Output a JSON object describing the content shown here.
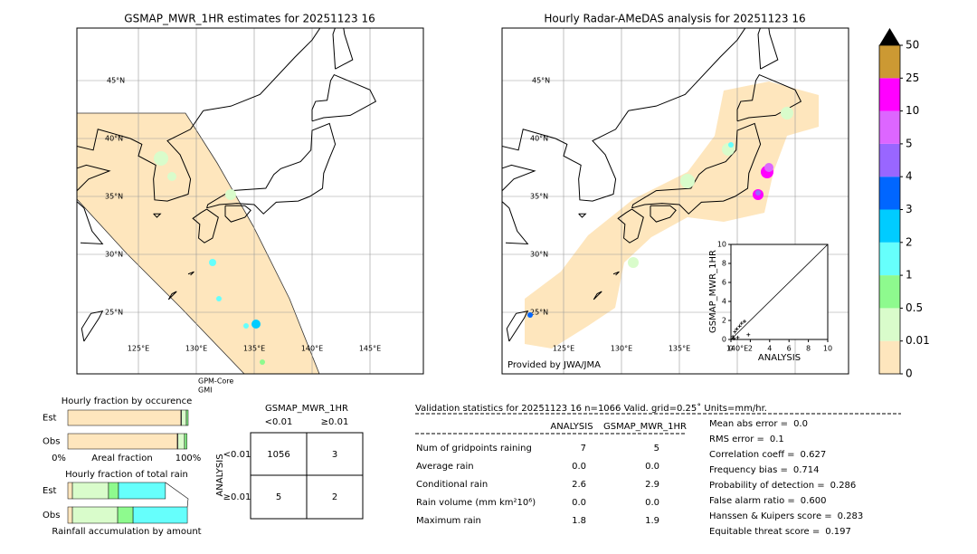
{
  "left_map": {
    "title": "GSMAP_MWR_1HR estimates for 20251123 16",
    "lat_labels": [
      "45°N",
      "40°N",
      "35°N",
      "30°N",
      "25°N"
    ],
    "lon_labels": [
      "125°E",
      "130°E",
      "135°E",
      "140°E",
      "145°E"
    ],
    "note": [
      "GPM-Core",
      "GMI"
    ]
  },
  "right_map": {
    "title": "Hourly Radar-AMeDAS analysis for 20251123 16",
    "lat_labels": [
      "45°N",
      "40°N",
      "35°N",
      "30°N",
      "25°N"
    ],
    "lon_labels": [
      "125°E",
      "130°E",
      "135°E",
      "140°E"
    ],
    "credit": "Provided by JWA/JMA"
  },
  "colorbar": {
    "levels": [
      0,
      0.01,
      0.5,
      1,
      2,
      3,
      4,
      5,
      10,
      25,
      50
    ],
    "colors": [
      "#fee6bd",
      "#d9fccb",
      "#8efa8e",
      "#66fffc",
      "#00ccff",
      "#0066ff",
      "#9966ff",
      "#dd66ff",
      "#ff00ff",
      "#cc9933"
    ],
    "extend_color": "#000000"
  },
  "scatter": {
    "type": "scatter",
    "xlabel": "ANALYSIS",
    "ylabel": "GSMAP_MWR_1HR",
    "xlim": [
      0,
      10
    ],
    "ylim": [
      0,
      10
    ],
    "xticks": [
      0,
      2,
      4,
      6,
      8,
      10
    ],
    "yticks": [
      0,
      2,
      4,
      6,
      8,
      10
    ],
    "x": [
      0.2,
      0.4,
      0.6,
      0.9,
      1.1,
      1.4,
      0.3,
      1.8,
      0.7
    ],
    "y": [
      0.3,
      0.8,
      1.1,
      1.4,
      1.7,
      1.9,
      0.1,
      0.5,
      0.2
    ],
    "color": "#000000"
  },
  "occurrence": {
    "type": "bar",
    "title": "Hourly fraction by occurence",
    "categories": [
      "Est",
      "Obs"
    ],
    "xlabel": "Areal fraction",
    "xlim_labels": [
      "0%",
      "100%"
    ],
    "xlim": [
      0,
      100
    ],
    "series": [
      {
        "color": "#fee6bd",
        "values": [
          94,
          91
        ]
      },
      {
        "color": "#ffffff",
        "values": [
          0.5,
          0.5
        ]
      },
      {
        "color": "#d9fccb",
        "values": [
          4,
          5.5
        ]
      },
      {
        "color": "#8efa8e",
        "values": [
          1.5,
          2
        ]
      }
    ]
  },
  "total_rain": {
    "type": "bar",
    "title": "Hourly fraction of total rain",
    "categories": [
      "Est",
      "Obs"
    ],
    "footer": "Rainfall accumulation by amount",
    "xlim": [
      0,
      100
    ],
    "series": [
      {
        "color": "#fee6bd",
        "values": [
          3.8,
          3.8
        ]
      },
      {
        "color": "#d9fccb",
        "values": [
          30,
          37.6
        ]
      },
      {
        "color": "#8efa8e",
        "values": [
          8.3,
          12.8
        ]
      },
      {
        "color": "#66fffc",
        "values": [
          39,
          45.1
        ]
      }
    ]
  },
  "contingency": {
    "title": "GSMAP_MWR_1HR",
    "columns": [
      "<0.01",
      "≥0.01"
    ],
    "row_title": "ANALYSIS",
    "rows": [
      "<0.01",
      "≥0.01"
    ],
    "cells": [
      [
        1056,
        3
      ],
      [
        5,
        2
      ]
    ]
  },
  "validation": {
    "header": "Validation statistics for 20251123 16  n=1066 Valid. grid=0.25˚ Units=mm/hr.",
    "columns": [
      "ANALYSIS",
      "GSMAP_MWR_1HR"
    ],
    "rows": [
      [
        "Num of gridpoints raining",
        "7",
        "5"
      ],
      [
        "Average rain",
        "0.0",
        "0.0"
      ],
      [
        "Conditional rain",
        "2.6",
        "2.9"
      ],
      [
        "Rain volume (mm km²10⁶)",
        "0.0",
        "0.0"
      ],
      [
        "Maximum rain",
        "1.8",
        "1.9"
      ]
    ],
    "scores": [
      [
        "Mean abs error =",
        "0.0"
      ],
      [
        "RMS error =",
        "0.1"
      ],
      [
        "Correlation coeff =",
        "0.627"
      ],
      [
        "Frequency bias =",
        "0.714"
      ],
      [
        "Probability of detection =",
        "0.286"
      ],
      [
        "False alarm ratio =",
        "0.600"
      ],
      [
        "Hanssen & Kuipers score =",
        "0.283"
      ],
      [
        "Equitable threat score =",
        "0.197"
      ]
    ]
  }
}
